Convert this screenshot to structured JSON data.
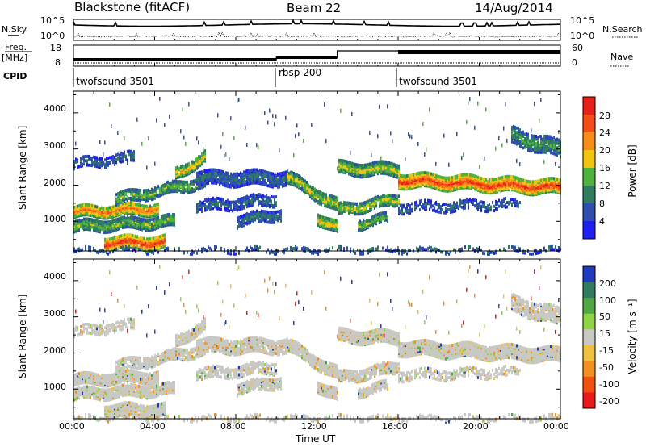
{
  "header": {
    "title": "Blackstone (fitACF)",
    "beam": "Beam 22",
    "date": "14/Aug/2014"
  },
  "panels": {
    "nsky_label": "N.Sky",
    "nsearch_label": "N.Search",
    "freq_label": "Freq.",
    "freq_unit": "[MHz]",
    "nave_label": "Nave",
    "cpid_label": "CPID",
    "nsky_ticks": [
      "10^5",
      "10^0"
    ],
    "nsearch_ticks": [
      "10^5",
      "10^0"
    ],
    "freq_ticks": [
      "18",
      "8"
    ],
    "nave_ticks": [
      "60",
      "0"
    ]
  },
  "cpid": [
    {
      "name": "twofsound 3501",
      "start": 0
    },
    {
      "name": "rbsp 200",
      "start": 10
    },
    {
      "name": "twofsound 3501",
      "start": 16
    }
  ],
  "chart_data": [
    {
      "type": "heatmap",
      "name": "power",
      "ylabel": "Slant Range [km]",
      "ylim": [
        180,
        4600
      ],
      "y_ticks": [
        "1000",
        "2000",
        "3000",
        "4000"
      ],
      "colorbar_label": "Power [dB]",
      "colorbar_ticks": [
        "28",
        "24",
        "20",
        "16",
        "12",
        "8",
        "4"
      ],
      "colorbar_colors": [
        "#e8201c",
        "#f24e16",
        "#f58c1c",
        "#f2c412",
        "#4fb33b",
        "#2f7c5f",
        "#2e4fb0",
        "#1f1ff0"
      ]
    },
    {
      "type": "heatmap",
      "name": "velocity",
      "ylabel": "Slant Range [km]",
      "ylim": [
        180,
        4600
      ],
      "y_ticks": [
        "1000",
        "2000",
        "3000",
        "4000"
      ],
      "colorbar_label": "Velocity [m s⁻¹]",
      "colorbar_ticks": [
        "200",
        "100",
        "50",
        "15",
        "-15",
        "-50",
        "-100",
        "-200"
      ],
      "colorbar_colors": [
        "#1f3cbe",
        "#2f7c5f",
        "#4fa843",
        "#8fd443",
        "#c8c8c4",
        "#f0c040",
        "#f59020",
        "#f05010",
        "#e81a1a"
      ]
    }
  ],
  "xaxis": {
    "label": "Time UT",
    "ticks": [
      "00:00",
      "04:00",
      "08:00",
      "12:00",
      "16:00",
      "20:00",
      "00:00"
    ]
  }
}
